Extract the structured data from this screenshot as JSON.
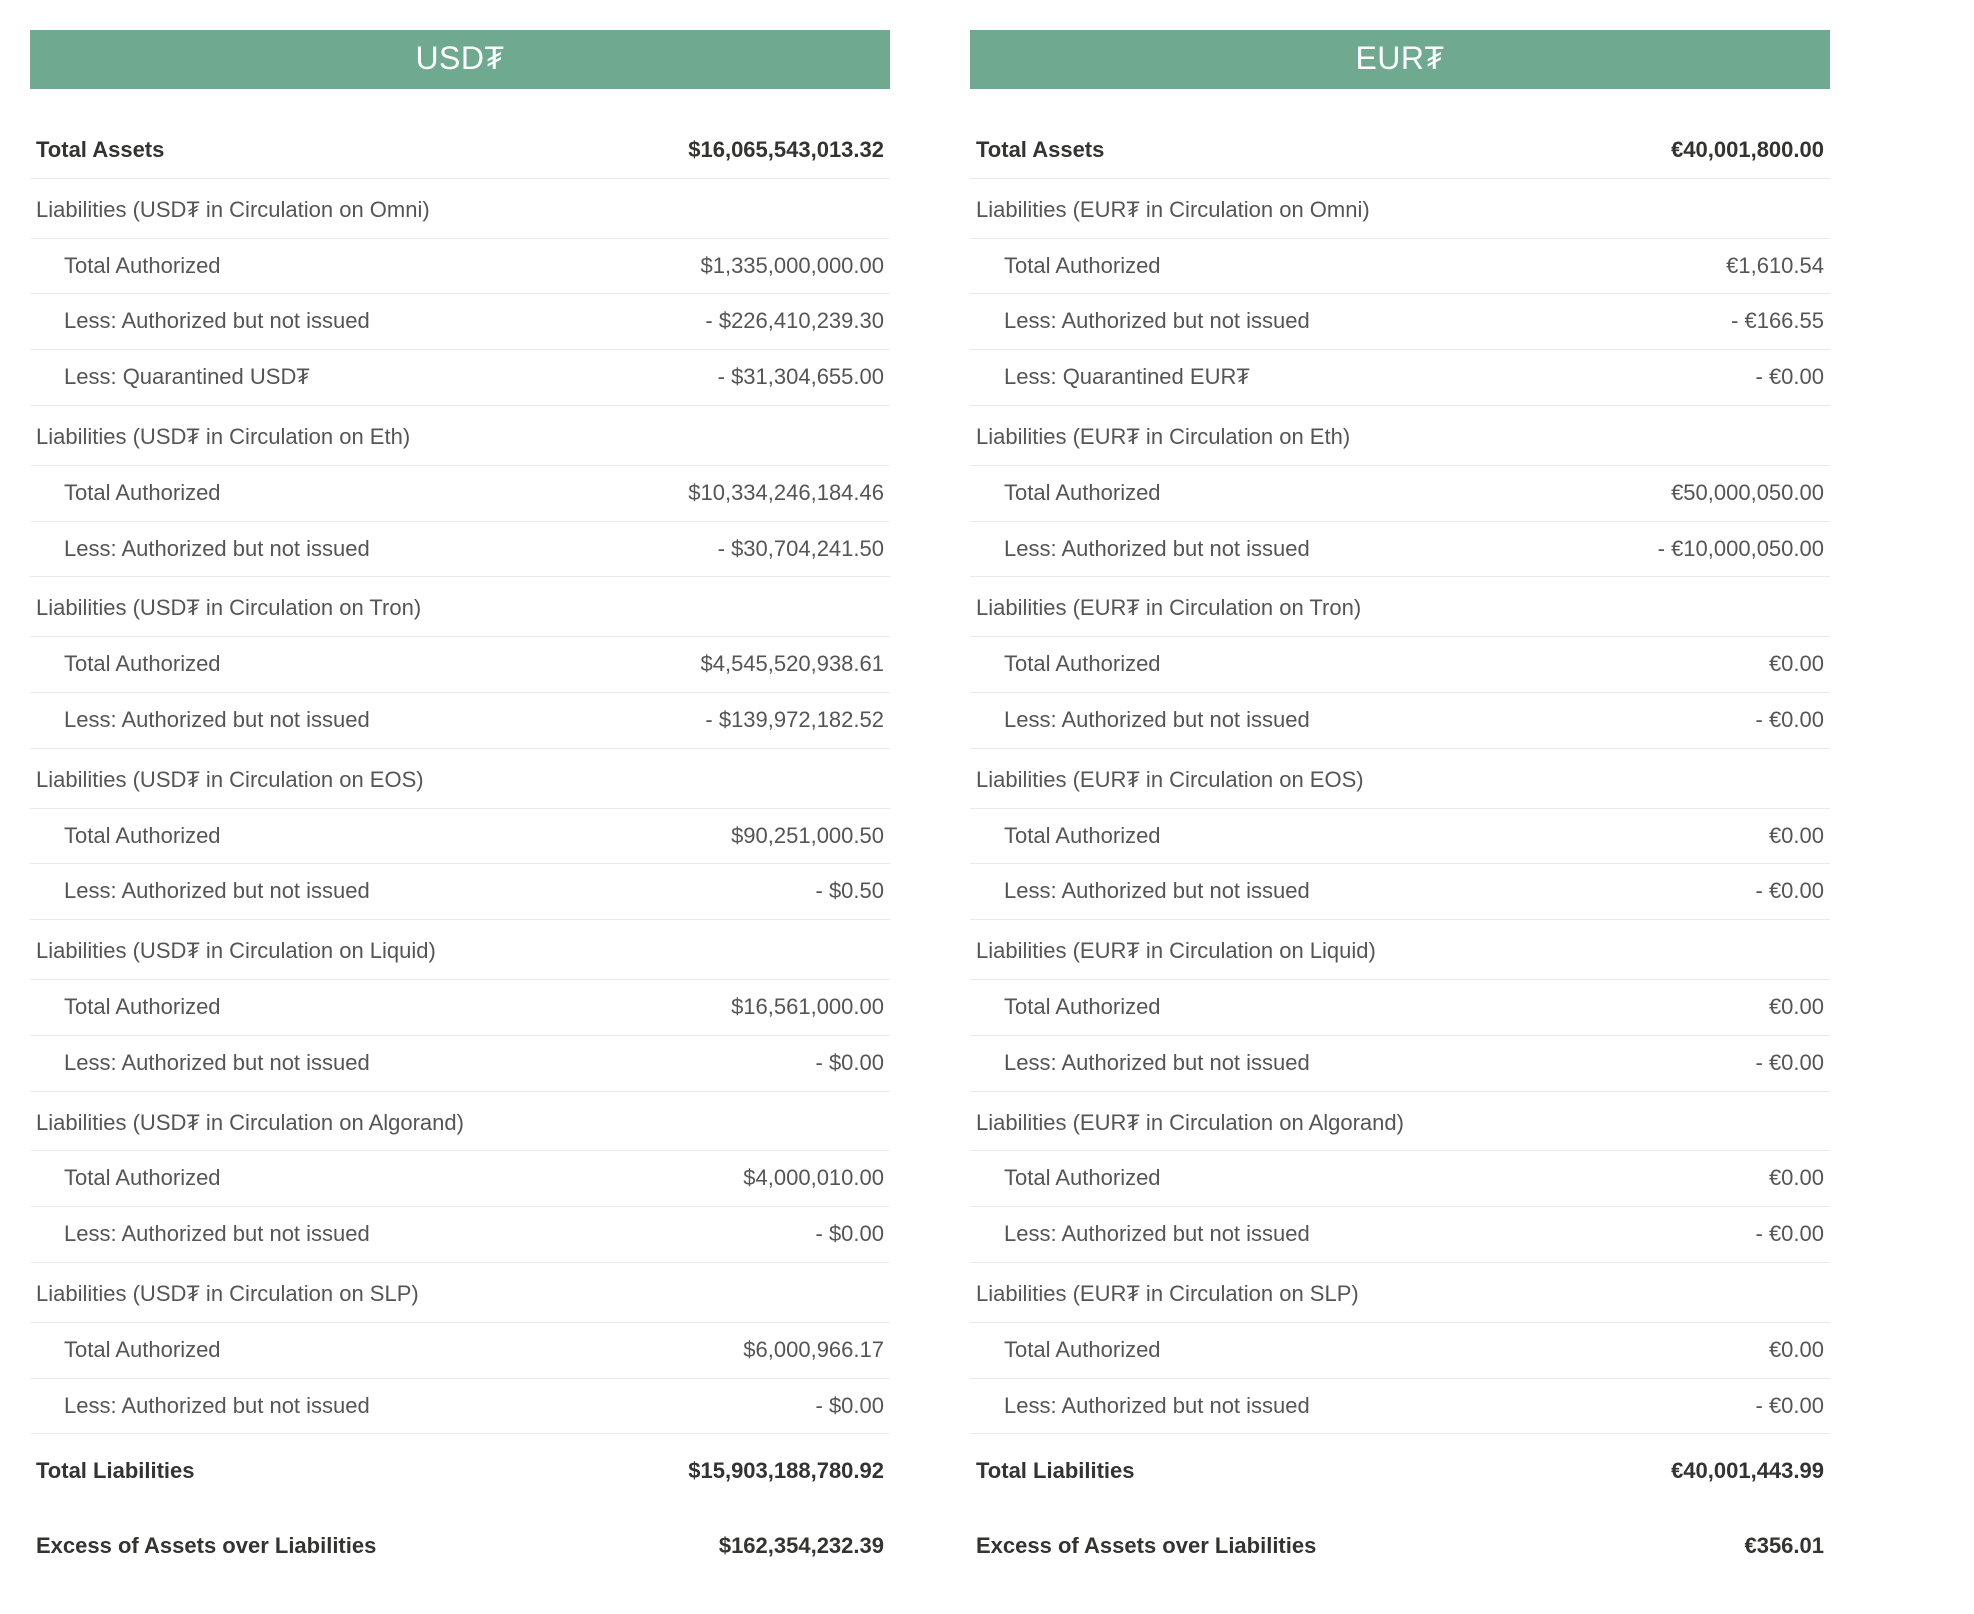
{
  "colors": {
    "header_bg": "#6fa98f",
    "header_text": "#ffffff",
    "body_text": "#555555",
    "bold_text": "#333331",
    "divider": "#ebebeb",
    "page_bg": "#ffffff"
  },
  "typography": {
    "header_fontsize_pt": 24,
    "row_fontsize_pt": 16,
    "font_family": "system-ui"
  },
  "panels": [
    {
      "id": "usd",
      "title": "USD₮",
      "total_assets_label": "Total Assets",
      "total_assets_value": "$16,065,543,013.32",
      "total_liab_label": "Total Liabilities",
      "total_liab_value": "$15,903,188,780.92",
      "excess_label": "Excess of Assets over Liabilities",
      "excess_value": "$162,354,232.39",
      "groups": [
        {
          "heading": "Liabilities (USD₮ in Circulation on Omni)",
          "rows": [
            {
              "label": "Total Authorized",
              "value": "$1,335,000,000.00"
            },
            {
              "label": "Less: Authorized but not issued",
              "value": "- $226,410,239.30"
            },
            {
              "label": "Less: Quarantined USD₮",
              "value": "- $31,304,655.00"
            }
          ]
        },
        {
          "heading": "Liabilities (USD₮ in Circulation on Eth)",
          "rows": [
            {
              "label": "Total Authorized",
              "value": "$10,334,246,184.46"
            },
            {
              "label": "Less: Authorized but not issued",
              "value": "- $30,704,241.50"
            }
          ]
        },
        {
          "heading": "Liabilities (USD₮ in Circulation on Tron)",
          "rows": [
            {
              "label": "Total Authorized",
              "value": "$4,545,520,938.61"
            },
            {
              "label": "Less: Authorized but not issued",
              "value": "- $139,972,182.52"
            }
          ]
        },
        {
          "heading": "Liabilities (USD₮ in Circulation on EOS)",
          "rows": [
            {
              "label": "Total Authorized",
              "value": "$90,251,000.50"
            },
            {
              "label": "Less: Authorized but not issued",
              "value": "- $0.50"
            }
          ]
        },
        {
          "heading": "Liabilities (USD₮ in Circulation on Liquid)",
          "rows": [
            {
              "label": "Total Authorized",
              "value": "$16,561,000.00"
            },
            {
              "label": "Less: Authorized but not issued",
              "value": "- $0.00"
            }
          ]
        },
        {
          "heading": "Liabilities (USD₮ in Circulation on Algorand)",
          "rows": [
            {
              "label": "Total Authorized",
              "value": "$4,000,010.00"
            },
            {
              "label": "Less: Authorized but not issued",
              "value": "- $0.00"
            }
          ]
        },
        {
          "heading": "Liabilities (USD₮ in Circulation on SLP)",
          "rows": [
            {
              "label": "Total Authorized",
              "value": "$6,000,966.17"
            },
            {
              "label": "Less: Authorized but not issued",
              "value": "- $0.00"
            }
          ]
        }
      ]
    },
    {
      "id": "eur",
      "title": "EUR₮",
      "total_assets_label": "Total Assets",
      "total_assets_value": "€40,001,800.00",
      "total_liab_label": "Total Liabilities",
      "total_liab_value": "€40,001,443.99",
      "excess_label": "Excess of Assets over Liabilities",
      "excess_value": "€356.01",
      "groups": [
        {
          "heading": "Liabilities (EUR₮ in Circulation on Omni)",
          "rows": [
            {
              "label": "Total Authorized",
              "value": "€1,610.54"
            },
            {
              "label": "Less: Authorized but not issued",
              "value": "- €166.55"
            },
            {
              "label": "Less: Quarantined EUR₮",
              "value": "- €0.00"
            }
          ]
        },
        {
          "heading": "Liabilities (EUR₮ in Circulation on Eth)",
          "rows": [
            {
              "label": "Total Authorized",
              "value": "€50,000,050.00"
            },
            {
              "label": "Less: Authorized but not issued",
              "value": "- €10,000,050.00"
            }
          ]
        },
        {
          "heading": "Liabilities (EUR₮ in Circulation on Tron)",
          "rows": [
            {
              "label": "Total Authorized",
              "value": "€0.00"
            },
            {
              "label": "Less: Authorized but not issued",
              "value": "- €0.00"
            }
          ]
        },
        {
          "heading": "Liabilities (EUR₮ in Circulation on EOS)",
          "rows": [
            {
              "label": "Total Authorized",
              "value": "€0.00"
            },
            {
              "label": "Less: Authorized but not issued",
              "value": "- €0.00"
            }
          ]
        },
        {
          "heading": "Liabilities (EUR₮ in Circulation on Liquid)",
          "rows": [
            {
              "label": "Total Authorized",
              "value": "€0.00"
            },
            {
              "label": "Less: Authorized but not issued",
              "value": "- €0.00"
            }
          ]
        },
        {
          "heading": "Liabilities (EUR₮ in Circulation on Algorand)",
          "rows": [
            {
              "label": "Total Authorized",
              "value": "€0.00"
            },
            {
              "label": "Less: Authorized but not issued",
              "value": "- €0.00"
            }
          ]
        },
        {
          "heading": "Liabilities (EUR₮ in Circulation on SLP)",
          "rows": [
            {
              "label": "Total Authorized",
              "value": "€0.00"
            },
            {
              "label": "Less: Authorized but not issued",
              "value": "- €0.00"
            }
          ]
        }
      ]
    }
  ]
}
